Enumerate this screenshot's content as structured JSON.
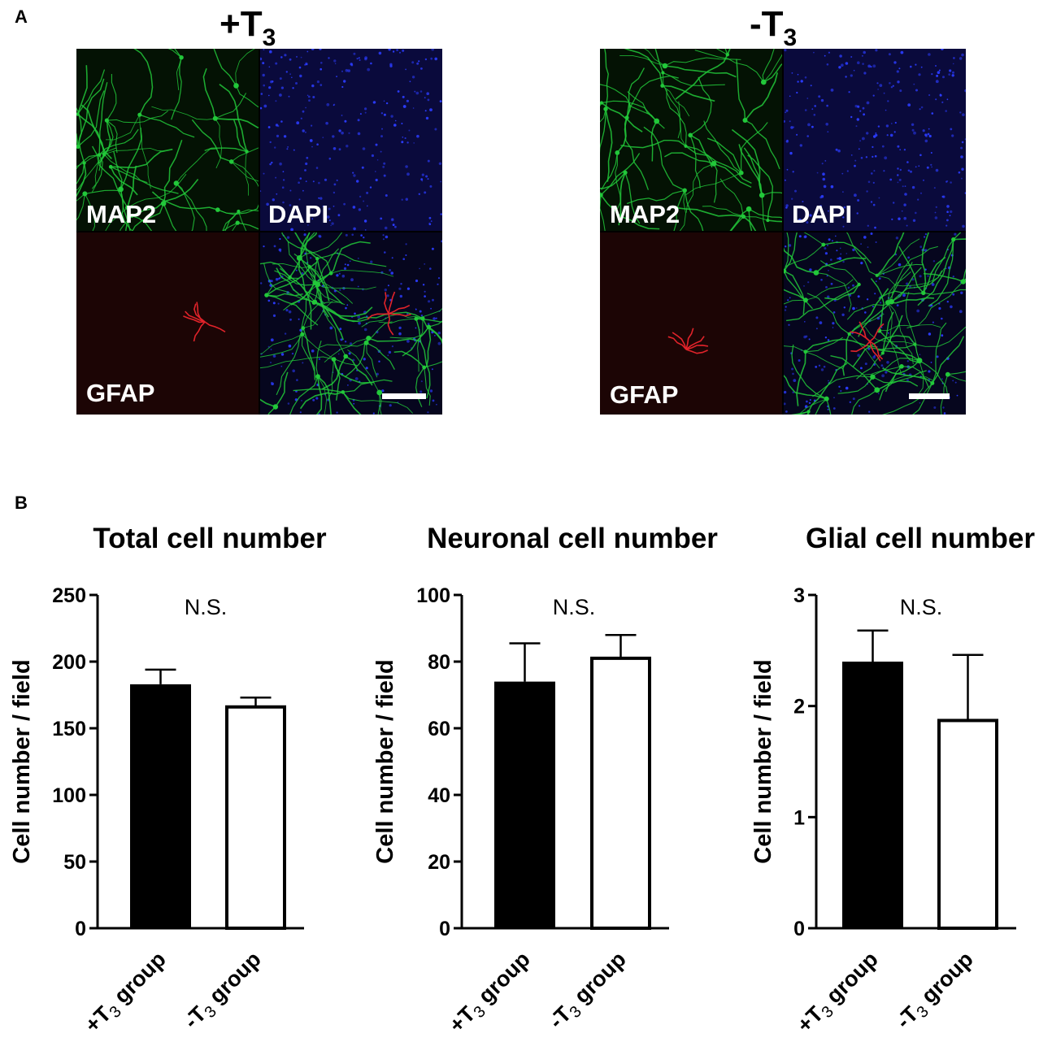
{
  "panel_a": {
    "letter": "A",
    "conditions": [
      {
        "title_main": "+T",
        "title_sub": "3",
        "tiles": [
          {
            "label": "MAP2",
            "stain": "green"
          },
          {
            "label": "DAPI",
            "stain": "blue"
          },
          {
            "label": "GFAP",
            "stain": "red"
          },
          {
            "label": "",
            "stain": "merge"
          }
        ]
      },
      {
        "title_main": "-T",
        "title_sub": "3",
        "tiles": [
          {
            "label": "MAP2",
            "stain": "green"
          },
          {
            "label": "DAPI",
            "stain": "blue"
          },
          {
            "label": "GFAP",
            "stain": "red"
          },
          {
            "label": "",
            "stain": "merge"
          }
        ]
      }
    ],
    "colors": {
      "green": "#22c83a",
      "blue": "#2b3cff",
      "red": "#e0232a",
      "tile_bg_blue": "#0a0a3c",
      "tile_bg_red": "#1c0505",
      "tile_bg_green": "#041204"
    }
  },
  "panel_b": {
    "letter": "B"
  },
  "chart_data": [
    {
      "type": "bar",
      "title": "Total cell number",
      "ylabel": "Cell number / field",
      "ylim": [
        0,
        250
      ],
      "yticks": [
        0,
        50,
        100,
        150,
        200,
        250
      ],
      "categories": [
        {
          "pre": "+T",
          "sub": "3",
          "post": " group"
        },
        {
          "pre": "-T",
          "sub": "3",
          "post": " group"
        }
      ],
      "values": [
        183,
        166
      ],
      "errors": [
        11,
        7
      ],
      "annotation": "N.S."
    },
    {
      "type": "bar",
      "title": "Neuronal cell number",
      "ylabel": "Cell number / field",
      "ylim": [
        0,
        100
      ],
      "yticks": [
        0,
        20,
        40,
        60,
        80,
        100
      ],
      "categories": [
        {
          "pre": "+T",
          "sub": "3",
          "post": " group"
        },
        {
          "pre": "-T",
          "sub": "3",
          "post": " group"
        }
      ],
      "values": [
        74,
        81
      ],
      "errors": [
        11.5,
        7
      ],
      "annotation": "N.S."
    },
    {
      "type": "bar",
      "title": "Glial cell number",
      "ylabel": "Cell number / field",
      "ylim": [
        0,
        3
      ],
      "yticks": [
        0,
        1,
        2,
        3
      ],
      "categories": [
        {
          "pre": "+T",
          "sub": "3",
          "post": " group"
        },
        {
          "pre": "-T",
          "sub": "3",
          "post": " group"
        }
      ],
      "values": [
        2.4,
        1.87
      ],
      "errors": [
        0.28,
        0.59
      ],
      "annotation": "N.S."
    }
  ]
}
